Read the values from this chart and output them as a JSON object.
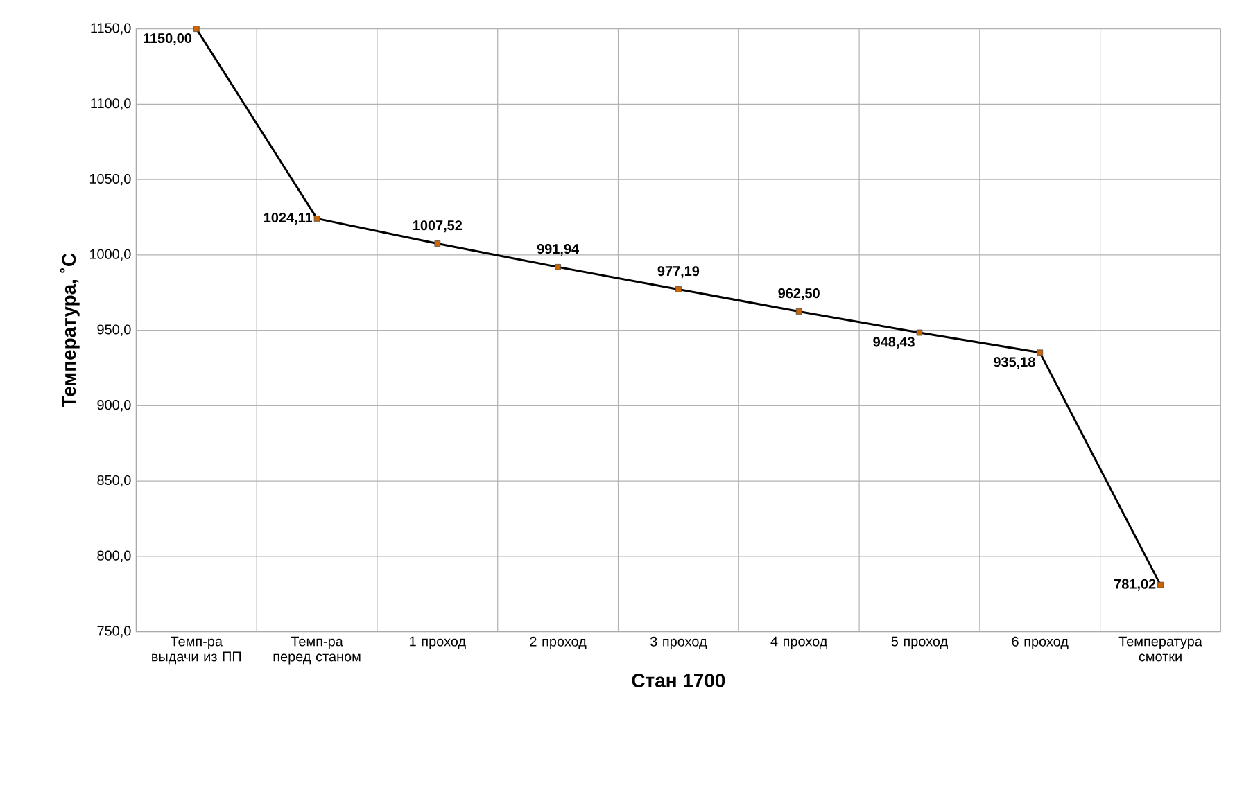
{
  "chart_data": {
    "type": "line",
    "xlabel": "Стан 1700",
    "ylabel": "Температура, ˚С",
    "categories": [
      "Темп-ра выдачи из ПП",
      "Темп-ра перед станом",
      "1 проход",
      "2 проход",
      "3 проход",
      "4 проход",
      "5 проход",
      "6 проход",
      "Температура смотки"
    ],
    "series": [
      {
        "color": "#000000",
        "values": [
          1150.0,
          1024.11,
          1007.52,
          991.94,
          977.19,
          962.5,
          948.43,
          935.18,
          781.02
        ],
        "value_labels": [
          "1150,00",
          "1024,11",
          "1007,52",
          "991,94",
          "977,19",
          "962,50",
          "948,43",
          "935,18",
          "781,02"
        ]
      }
    ],
    "ylim": [
      750,
      1150
    ],
    "yticks": [
      {
        "value": 750,
        "label": "750,0"
      },
      {
        "value": 800,
        "label": "800,0"
      },
      {
        "value": 850,
        "label": "850,0"
      },
      {
        "value": 900,
        "label": "900,0"
      },
      {
        "value": 950,
        "label": "950,0"
      },
      {
        "value": 1000,
        "label": "1000,0"
      },
      {
        "value": 1050,
        "label": "1050,0"
      },
      {
        "value": 1100,
        "label": "1100,0"
      },
      {
        "value": 1150,
        "label": "1150,0"
      }
    ],
    "grid": true,
    "marker": "square",
    "line_style": "solid"
  }
}
